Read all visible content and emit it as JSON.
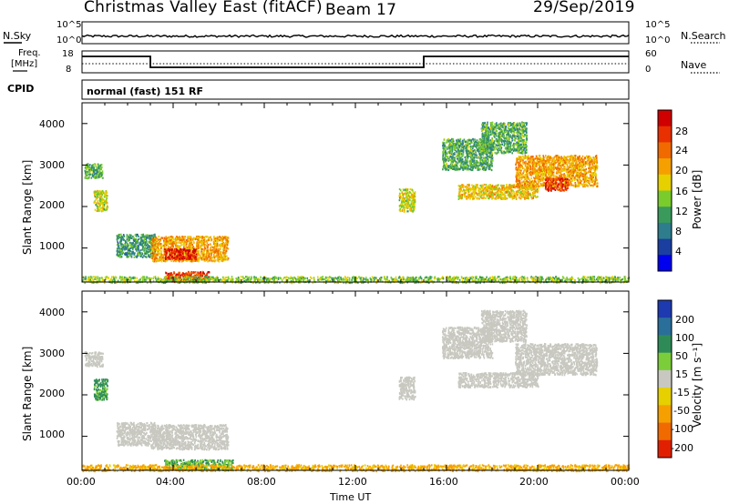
{
  "header": {
    "station": "Christmas Valley East (fitACF)",
    "beam": "Beam 17",
    "date": "29/Sep/2019"
  },
  "noise_panel": {
    "label": "N.Sky",
    "tick_top": "10^5",
    "tick_bottom": "10^0",
    "right_label": "N.Search",
    "right_tick_top": "10^5",
    "right_tick_bottom": "10^0"
  },
  "freq_panel": {
    "label_line1": "Freq.",
    "label_line2": "[MHz]",
    "tick_top": "18",
    "tick_bottom": "8",
    "right_label": "Nave",
    "right_tick_top": "60",
    "right_tick_bottom": "0",
    "freq_segments": [
      {
        "start_h": 0.0,
        "end_h": 3.0,
        "mhz": 15.5
      },
      {
        "start_h": 3.0,
        "end_h": 15.0,
        "mhz": 10.5
      },
      {
        "start_h": 15.0,
        "end_h": 24.0,
        "mhz": 15.5
      }
    ]
  },
  "cpid": {
    "label": "CPID",
    "mode": "normal (fast) 151 RF"
  },
  "x_axis": {
    "label": "Time UT",
    "ticks": [
      "00:00",
      "04:00",
      "08:00",
      "12:00",
      "16:00",
      "20:00",
      "00:00"
    ],
    "range_h": [
      0,
      24
    ]
  },
  "power_panel": {
    "ylabel": "Slant Range [km]",
    "yticks": [
      "1000",
      "2000",
      "3000",
      "4000"
    ],
    "colorbar_label": "Power [dB]",
    "colorbar_ticks": [
      "4",
      "8",
      "12",
      "16",
      "20",
      "24",
      "28"
    ],
    "colorbar_colors": [
      "#0000ee",
      "#1a3fa0",
      "#2e7d8c",
      "#3a9a5c",
      "#7acc2c",
      "#e6d000",
      "#f5a000",
      "#f06a00",
      "#e83000",
      "#d00000"
    ]
  },
  "velocity_panel": {
    "ylabel": "Slant Range [km]",
    "yticks": [
      "1000",
      "2000",
      "3000",
      "4000"
    ],
    "colorbar_label": "Velocity [m s⁻¹]",
    "colorbar_ticks": [
      "200",
      "100",
      "50",
      "15",
      "-15",
      "-50",
      "-100",
      "-200"
    ],
    "colorbar_colors": [
      "#1e3ab0",
      "#2a6e9a",
      "#2e8b57",
      "#7ccd3a",
      "#c8c8c0",
      "#e6d000",
      "#f5a000",
      "#f06a00",
      "#e02000"
    ]
  },
  "chart_data": [
    {
      "type": "heatmap",
      "title": "Power [dB]",
      "xlabel": "Time UT",
      "ylabel": "Slant Range [km]",
      "xlim_h": [
        0,
        24
      ],
      "ylim_km": [
        180,
        4500
      ],
      "regions": [
        {
          "t_start": 0.1,
          "t_end": 0.9,
          "r_min": 2700,
          "r_max": 3050,
          "db": 10
        },
        {
          "t_start": 0.5,
          "t_end": 1.1,
          "r_min": 1900,
          "r_max": 2400,
          "db": 14
        },
        {
          "t_start": 1.5,
          "t_end": 3.2,
          "r_min": 800,
          "r_max": 1350,
          "db": 8
        },
        {
          "t_start": 3.0,
          "t_end": 6.4,
          "r_min": 700,
          "r_max": 1300,
          "db": 18
        },
        {
          "t_start": 3.6,
          "t_end": 5.0,
          "r_min": 750,
          "r_max": 1000,
          "db": 26
        },
        {
          "t_start": 3.6,
          "t_end": 5.6,
          "r_min": 200,
          "r_max": 450,
          "db": 24
        },
        {
          "t_start": 13.9,
          "t_end": 14.6,
          "r_min": 1900,
          "r_max": 2450,
          "db": 14
        },
        {
          "t_start": 15.8,
          "t_end": 18.0,
          "r_min": 2900,
          "r_max": 3650,
          "db": 10
        },
        {
          "t_start": 16.5,
          "t_end": 20.0,
          "r_min": 2200,
          "r_max": 2550,
          "db": 16
        },
        {
          "t_start": 17.5,
          "t_end": 19.5,
          "r_min": 3300,
          "r_max": 4050,
          "db": 10
        },
        {
          "t_start": 19.0,
          "t_end": 22.6,
          "r_min": 2500,
          "r_max": 3250,
          "db": 18
        },
        {
          "t_start": 20.3,
          "t_end": 21.3,
          "r_min": 2400,
          "r_max": 2700,
          "db": 24
        },
        {
          "t_start": 0.0,
          "t_end": 24.0,
          "r_min": 180,
          "r_max": 330,
          "db": 12
        }
      ]
    },
    {
      "type": "heatmap",
      "title": "Velocity [m s⁻¹]",
      "xlabel": "Time UT",
      "ylabel": "Slant Range [km]",
      "xlim_h": [
        0,
        24
      ],
      "ylim_km": [
        180,
        4500
      ],
      "regions": [
        {
          "t_start": 0.1,
          "t_end": 0.9,
          "r_min": 2700,
          "r_max": 3050,
          "v": 0
        },
        {
          "t_start": 0.5,
          "t_end": 1.1,
          "r_min": 1900,
          "r_max": 2400,
          "v": 40
        },
        {
          "t_start": 1.5,
          "t_end": 3.2,
          "r_min": 800,
          "r_max": 1350,
          "v": 0
        },
        {
          "t_start": 3.0,
          "t_end": 6.4,
          "r_min": 700,
          "r_max": 1300,
          "v": 0
        },
        {
          "t_start": 3.6,
          "t_end": 6.6,
          "r_min": 200,
          "r_max": 450,
          "v": 30
        },
        {
          "t_start": 13.9,
          "t_end": 14.6,
          "r_min": 1900,
          "r_max": 2450,
          "v": 0
        },
        {
          "t_start": 15.8,
          "t_end": 18.0,
          "r_min": 2900,
          "r_max": 3650,
          "v": 0
        },
        {
          "t_start": 16.5,
          "t_end": 20.0,
          "r_min": 2200,
          "r_max": 2550,
          "v": 0
        },
        {
          "t_start": 17.5,
          "t_end": 19.5,
          "r_min": 3300,
          "r_max": 4050,
          "v": 0
        },
        {
          "t_start": 19.0,
          "t_end": 22.6,
          "r_min": 2500,
          "r_max": 3250,
          "v": 0
        },
        {
          "t_start": 0.0,
          "t_end": 24.0,
          "r_min": 180,
          "r_max": 330,
          "v": -40
        }
      ]
    }
  ]
}
